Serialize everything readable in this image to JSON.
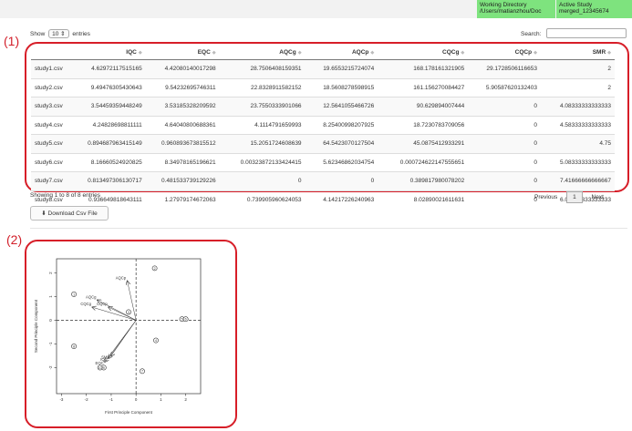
{
  "status": {
    "working_directory_label": "Working Directory",
    "working_directory_value": "/Users/matianzhou/Doc",
    "active_study_label": "Active Study",
    "active_study_value": "merged_12345674"
  },
  "annotations": {
    "table_label": "(1)",
    "plot_label": "(2)"
  },
  "table_controls": {
    "show_label": "Show",
    "entries_value": "10",
    "entries_suffix": "entries",
    "search_label": "Search:"
  },
  "columns": [
    "",
    "IQC",
    "EQC",
    "AQCg",
    "AQCp",
    "CQCg",
    "CQCp",
    "SMR"
  ],
  "rows": [
    [
      "study1.csv",
      "4.62972117515165",
      "4.42080140017298",
      "28.7506408159351",
      "19.6553215724074",
      "168.178161321905",
      "29.1728506116653",
      "2"
    ],
    [
      "study2.csv",
      "9.49476305430643",
      "9.54232695746311",
      "22.8328911582152",
      "18.5608278598915",
      "161.156270084427",
      "5.90587620132403",
      "2"
    ],
    [
      "study3.csv",
      "3.54459359448249",
      "3.53185328209592",
      "23.7550333901066",
      "12.5641055466726",
      "90.629894007444",
      "0",
      "4.08333333333333"
    ],
    [
      "study4.csv",
      "4.24828698811111",
      "4.64040800688361",
      "4.1114791659993",
      "8.25400998207925",
      "18.7230783709056",
      "0",
      "4.58333333333333"
    ],
    [
      "study5.csv",
      "0.894687963415149",
      "0.960893673815512",
      "15.2051724608639",
      "64.5423070127504",
      "45.0875412933291",
      "0",
      "4.75"
    ],
    [
      "study6.csv",
      "8.16660524920825",
      "8.34978165196621",
      "0.00323872133424415",
      "5.62346862034754",
      "0.000724622147555651",
      "0",
      "5.08333333333333"
    ],
    [
      "study7.csv",
      "0.813497306130717",
      "0.481533739129226",
      "0",
      "0",
      "0.389817980078202",
      "0",
      "7.41666666666667"
    ],
    [
      "study8.csv",
      "0.936649818643111",
      "1.27979174672063",
      "0.739905960624053",
      "4.14217226240963",
      "8.02890021611631",
      "0",
      "6.08333333333333"
    ]
  ],
  "table_info": "Showing 1 to 8 of 8 entries",
  "pagination": {
    "previous": "Previous",
    "current": "1",
    "next": "Next"
  },
  "download_button": "Download Csv File",
  "download_icon": "download-icon",
  "chart_data": {
    "type": "scatter",
    "subtype": "pca-biplot",
    "xlabel": "First Principle Component",
    "ylabel": "Second Principle Component",
    "xlim": [
      -3.2,
      2.6
    ],
    "ylim": [
      -3.1,
      2.6
    ],
    "xticks": [
      "-3",
      "-2",
      "-1",
      "0",
      "1",
      "2"
    ],
    "yticks": [
      "-2",
      "-1",
      "0",
      "1",
      "2"
    ],
    "points": [
      {
        "label": "1",
        "x": -2.5,
        "y": 1.1
      },
      {
        "label": "2",
        "x": 0.75,
        "y": 2.2
      },
      {
        "label": "3",
        "x": -0.3,
        "y": 0.35
      },
      {
        "label": "4",
        "x": 0.8,
        "y": -0.85
      },
      {
        "label": "5",
        "x": 1.85,
        "y": 0.05
      },
      {
        "label": "6",
        "x": 2.0,
        "y": 0.05
      },
      {
        "label": "7",
        "x": 0.25,
        "y": -2.15
      },
      {
        "label": "8",
        "x": -2.5,
        "y": -1.1
      },
      {
        "label": "9",
        "x": -1.3,
        "y": -2.0
      },
      {
        "label": "10",
        "x": -1.45,
        "y": -2.0
      }
    ],
    "vectors": [
      {
        "label": "AQCp",
        "x": -0.35,
        "y": 1.65
      },
      {
        "label": "AQCg",
        "x": -1.55,
        "y": 0.85
      },
      {
        "label": "CQCp",
        "x": -1.1,
        "y": 0.55
      },
      {
        "label": "CQCg",
        "x": -1.75,
        "y": 0.55
      },
      {
        "label": "IQC",
        "x": -1.1,
        "y": -1.6
      },
      {
        "label": "EQC",
        "x": -1.25,
        "y": -1.75
      },
      {
        "label": "SMR",
        "x": -1.0,
        "y": -1.5
      }
    ],
    "reference_lines": {
      "x": 0,
      "y": 0,
      "style": "dashed"
    }
  }
}
